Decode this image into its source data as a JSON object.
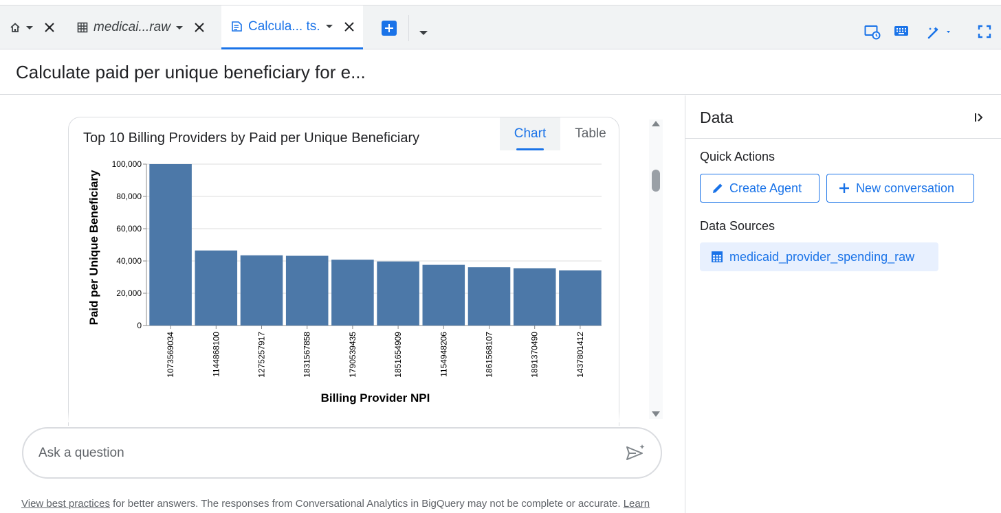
{
  "tabs": {
    "home": {
      "icon": "home-icon"
    },
    "table_tab": {
      "label": "medicai...raw",
      "icon": "table-icon"
    },
    "active_tab": {
      "label": "Calcula... ts.",
      "icon": "chat-doc-icon"
    }
  },
  "toolbar_icons": [
    "schedule-monitor-icon",
    "keyboard-icon",
    "magic-pen-icon",
    "fullscreen-icon"
  ],
  "page_title": "Calculate paid per unique beneficiary for e...",
  "chart_view": {
    "tab_chart": "Chart",
    "tab_table": "Table",
    "active": "Chart"
  },
  "chart_data": {
    "type": "bar",
    "title": "Top 10 Billing Providers by Paid per Unique Beneficiary",
    "xlabel": "Billing Provider NPI",
    "ylabel": "Paid per Unique Beneficiary",
    "categories": [
      "1073569034",
      "1144868100",
      "1275257917",
      "1831567858",
      "1790539435",
      "1851654909",
      "1154948206",
      "1861568107",
      "1891370490",
      "1437801412"
    ],
    "values": [
      100000,
      46500,
      43500,
      43200,
      40800,
      39700,
      37600,
      36100,
      35500,
      34200
    ],
    "yticks": [
      0,
      20000,
      40000,
      60000,
      80000,
      100000
    ],
    "ytick_labels": [
      "0",
      "20,000",
      "40,000",
      "60,000",
      "80,000",
      "100,000"
    ],
    "ylim": [
      0,
      100000
    ],
    "bar_color": "#4c78a8",
    "grid": true,
    "legend": "none"
  },
  "ask": {
    "placeholder": "Ask a question",
    "value": ""
  },
  "disclaimer": {
    "link1": "View best practices",
    "text": " for better answers. The responses from Conversational Analytics in BigQuery may not be complete or accurate. ",
    "link2": "Learn"
  },
  "side": {
    "title": "Data",
    "quick_actions_label": "Quick Actions",
    "create_agent": "Create Agent",
    "new_conversation": "New conversation",
    "data_sources_label": "Data Sources",
    "source_name": "medicaid_provider_spending_raw"
  },
  "colors": {
    "accent": "#1a73e8",
    "bar": "#4c78a8",
    "chip_bg": "#e8f0fe"
  }
}
